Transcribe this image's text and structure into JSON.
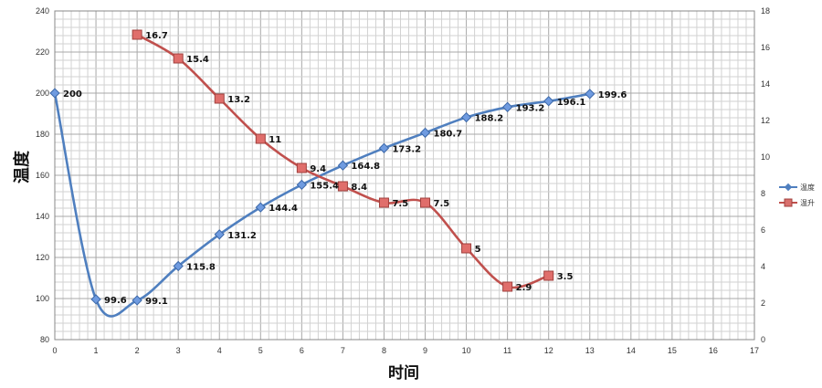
{
  "chart_data": {
    "type": "line",
    "xlabel": "时间",
    "ylabel": "温度",
    "xlim": [
      0,
      17
    ],
    "x_ticks": [
      0,
      1,
      2,
      3,
      4,
      5,
      6,
      7,
      8,
      9,
      10,
      11,
      12,
      13,
      14,
      15,
      16,
      17
    ],
    "ylim_left": [
      80,
      240
    ],
    "y_left_ticks": [
      80,
      100,
      120,
      140,
      160,
      180,
      200,
      220,
      240
    ],
    "ylim_right": [
      0,
      18
    ],
    "y_right_ticks": [
      0,
      2,
      4,
      6,
      8,
      10,
      12,
      14,
      16,
      18
    ],
    "grid": true,
    "legend_position": "right",
    "series": [
      {
        "name": "温度",
        "axis": "left",
        "marker": "diamond",
        "color": "#4f7fbf",
        "x": [
          0,
          1,
          2,
          3,
          4,
          5,
          6,
          7,
          8,
          9,
          10,
          11,
          12,
          13
        ],
        "values": [
          200,
          99.6,
          99.1,
          115.8,
          131.2,
          144.4,
          155.4,
          164.8,
          173.2,
          180.7,
          188.2,
          193.2,
          196.1,
          199.6
        ],
        "labels": [
          "200",
          "99.6",
          "99.1",
          "115.8",
          "131.2",
          "144.4",
          "155.4",
          "164.8",
          "173.2",
          "180.7",
          "188.2",
          "193.2",
          "196.1",
          "199.6"
        ]
      },
      {
        "name": "温升",
        "axis": "right",
        "marker": "square",
        "color": "#c0504d",
        "x": [
          2,
          3,
          4,
          5,
          6,
          7,
          8,
          9,
          10,
          11,
          12
        ],
        "values": [
          16.7,
          15.4,
          13.2,
          11,
          9.4,
          8.4,
          7.5,
          7.5,
          5,
          2.9,
          3.5
        ],
        "labels": [
          "16.7",
          "15.4",
          "13.2",
          "11",
          "9.4",
          "8.4",
          "7.5",
          "7.5",
          "5",
          "2.9",
          "3.5"
        ]
      }
    ]
  }
}
